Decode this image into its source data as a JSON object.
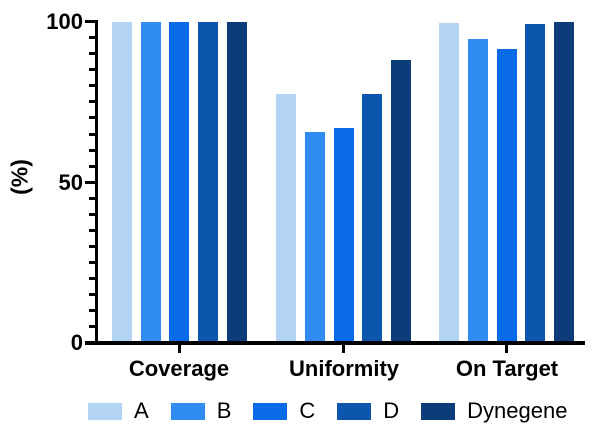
{
  "chart_data": {
    "type": "bar",
    "title": "",
    "xlabel": "",
    "ylabel": "(%)",
    "ylim": [
      0,
      100
    ],
    "y_ticks": [
      0,
      50,
      100
    ],
    "y_minor_step": 5,
    "grid": false,
    "legend_position": "bottom",
    "axis_color": "#000000",
    "categories": [
      "Coverage",
      "Uniformity",
      "On Target"
    ],
    "series": [
      {
        "name": "A",
        "color": "#B3D4F5",
        "values": [
          100,
          77.5,
          99.5
        ]
      },
      {
        "name": "B",
        "color": "#2F8CF0",
        "values": [
          100,
          65.5,
          94.5
        ]
      },
      {
        "name": "C",
        "color": "#0A6BE8",
        "values": [
          100,
          67.0,
          91.3
        ]
      },
      {
        "name": "D",
        "color": "#0D56AE",
        "values": [
          100,
          77.5,
          99.3
        ]
      },
      {
        "name": "Dynegene",
        "color": "#0C3D7A",
        "values": [
          100,
          88.0,
          99.9
        ]
      }
    ]
  }
}
